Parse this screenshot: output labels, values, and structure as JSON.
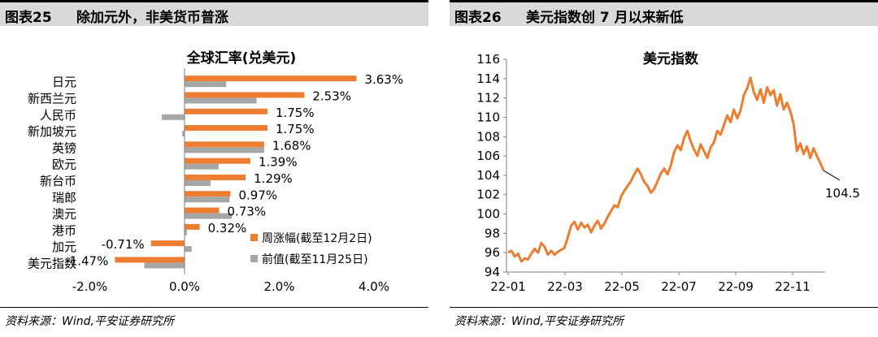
{
  "left_panel": {
    "figure_number": "图表25",
    "figure_title": "除加元外，非美货币普涨",
    "source": "资料来源：Wind,平安证券研究所"
  },
  "right_panel": {
    "figure_number": "图表26",
    "figure_title": "美元指数创 7 月以来新低",
    "source": "资料来源：Wind,平安证券研究所"
  },
  "chart_data": [
    {
      "type": "bar",
      "orientation": "horizontal",
      "title": "全球汇率(兑美元)",
      "categories": [
        "日元",
        "新西兰元",
        "人民币",
        "新加坡元",
        "英镑",
        "欧元",
        "新台币",
        "瑞郎",
        "澳元",
        "港币",
        "加元",
        "美元指数"
      ],
      "series": [
        {
          "name": "周涨幅(截至12月2日)",
          "color": "#ed7d31",
          "values": [
            3.63,
            2.53,
            1.75,
            1.75,
            1.68,
            1.39,
            1.29,
            0.97,
            0.73,
            0.32,
            -0.71,
            -1.47
          ],
          "labels": [
            "3.63%",
            "2.53%",
            "1.75%",
            "1.75%",
            "1.68%",
            "1.39%",
            "1.29%",
            "0.97%",
            "0.73%",
            "0.32%",
            "-0.71%",
            "-1.47%"
          ]
        },
        {
          "name": "前值(截至11月25日)",
          "color": "#a6a6a6",
          "values": [
            0.88,
            1.52,
            -0.48,
            -0.05,
            1.68,
            0.72,
            0.55,
            0.95,
            1.0,
            0.05,
            0.15,
            -0.85
          ]
        }
      ],
      "xlim": [
        -2.0,
        4.0
      ],
      "xticks": [
        "-2.0%",
        "0.0%",
        "2.0%",
        "4.0%"
      ],
      "legend_position": "bottom-right"
    },
    {
      "type": "line",
      "title": "美元指数",
      "ylim": [
        94,
        116
      ],
      "yticks": [
        "94",
        "96",
        "98",
        "100",
        "102",
        "104",
        "106",
        "108",
        "110",
        "112",
        "114",
        "116"
      ],
      "xticks": [
        "22-01",
        "22-03",
        "22-05",
        "22-07",
        "22-09",
        "22-11"
      ],
      "end_label": "104.5",
      "color": "#ed7d31",
      "series": [
        {
          "name": "",
          "values": [
            96.0,
            96.2,
            95.6,
            95.9,
            95.1,
            95.4,
            95.3,
            95.9,
            96.4,
            96.0,
            97.0,
            96.6,
            95.8,
            96.2,
            95.8,
            96.1,
            96.3,
            96.5,
            97.6,
            98.8,
            99.2,
            98.4,
            99.1,
            98.6,
            98.9,
            98.1,
            98.8,
            99.3,
            98.5,
            99.0,
            99.7,
            100.3,
            100.9,
            100.7,
            101.8,
            102.4,
            102.9,
            103.4,
            104.1,
            104.7,
            104.1,
            103.3,
            102.9,
            102.2,
            102.6,
            103.4,
            104.2,
            104.7,
            104.1,
            105.0,
            106.4,
            107.1,
            106.6,
            107.9,
            108.6,
            107.5,
            106.7,
            106.0,
            107.2,
            106.5,
            105.8,
            106.9,
            107.4,
            108.6,
            108.2,
            109.2,
            110.2,
            109.5,
            110.8,
            109.9,
            110.7,
            112.3,
            113.0,
            114.1,
            112.6,
            111.8,
            112.9,
            111.5,
            113.1,
            112.3,
            112.8,
            111.2,
            112.4,
            110.8,
            111.5,
            110.6,
            109.3,
            106.5,
            107.3,
            106.2,
            107.0,
            105.8,
            106.8,
            106.0,
            105.3,
            104.5
          ]
        }
      ]
    }
  ]
}
